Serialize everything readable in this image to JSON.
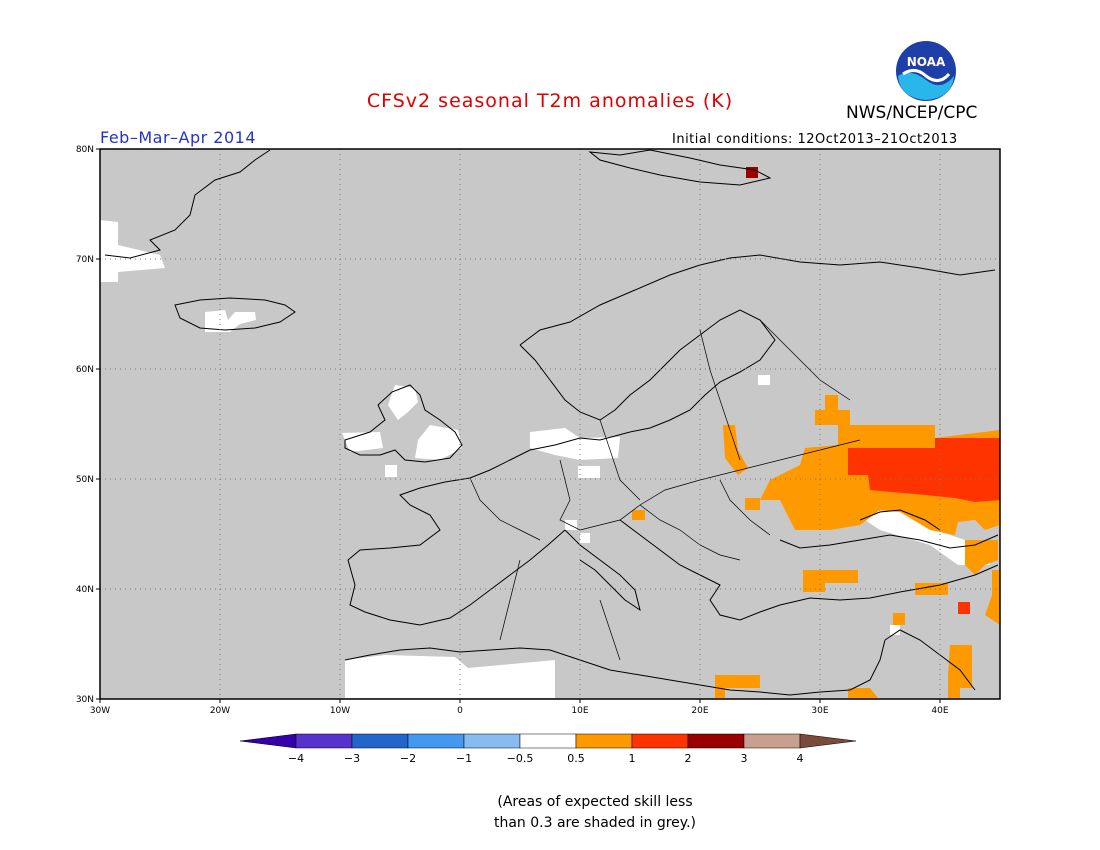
{
  "title": "CFSv2 seasonal T2m anomalies (K)",
  "agency": "NWS/NCEP/CPC",
  "period": "Feb–Mar–Apr 2014",
  "initial_conditions": "Initial conditions: 12Oct2013–21Oct2013",
  "logo_text": "NOAA",
  "lat_labels": [
    "80N",
    "70N",
    "60N",
    "50N",
    "40N",
    "30N"
  ],
  "lon_labels": [
    "30W",
    "20W",
    "10W",
    "0",
    "10E",
    "20E",
    "30E",
    "40E"
  ],
  "colorbar": {
    "tick_labels": [
      "−4",
      "−3",
      "−2",
      "−1",
      "−0.5",
      "0.5",
      "1",
      "2",
      "3",
      "4"
    ],
    "colors": [
      "#3300aa",
      "#5533cc",
      "#2266cc",
      "#4499ee",
      "#88bbf0",
      "#ffffff",
      "#ff9900",
      "#ff3300",
      "#990000",
      "#c8a090",
      "#7a4a3a"
    ]
  },
  "colors": {
    "title": "#dd0000",
    "period": "#2233cc",
    "low_skill": "#c8c8c8",
    "neutral": "#ffffff",
    "warm_0_5_1": "#ff9900",
    "warm_1_2": "#ff3300",
    "warm_2_3": "#990000"
  },
  "note": [
    "(Areas of expected skill less",
    "than 0.3 are shaded in grey.)"
  ]
}
